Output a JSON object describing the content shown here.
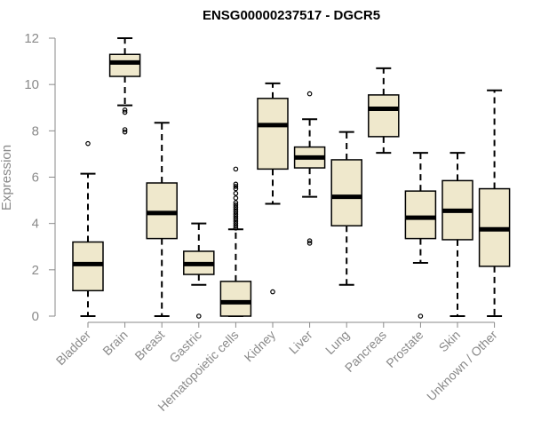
{
  "chart_data": {
    "type": "boxplot",
    "title": "ENSG00000237517 - DGCR5",
    "xlabel": "",
    "ylabel": "Expression",
    "ylim": [
      0,
      12
    ],
    "yticks": [
      0,
      2,
      4,
      6,
      8,
      10,
      12
    ],
    "grid": false,
    "legend": "none",
    "box_fill": "#efe8cc",
    "categories": [
      "Bladder",
      "Brain",
      "Breast",
      "Gastric",
      "Hematopoietic cells",
      "Kidney",
      "Liver",
      "Lung",
      "Pancreas",
      "Prostate",
      "Skin",
      "Unknown / Other"
    ],
    "boxes": [
      {
        "min": 0.0,
        "q1": 1.1,
        "median": 2.25,
        "q3": 3.2,
        "max": 6.15,
        "outliers": [
          7.45
        ]
      },
      {
        "min": 9.1,
        "q1": 10.35,
        "median": 10.95,
        "q3": 11.3,
        "max": 12.0,
        "outliers": [
          8.8,
          8.9,
          8.05,
          7.95
        ]
      },
      {
        "min": 0.0,
        "q1": 3.35,
        "median": 4.45,
        "q3": 5.75,
        "max": 8.35,
        "outliers": []
      },
      {
        "min": 1.35,
        "q1": 1.8,
        "median": 2.25,
        "q3": 2.8,
        "max": 4.0,
        "outliers": [
          0.0
        ]
      },
      {
        "min": 0.0,
        "q1": 0.0,
        "median": 0.6,
        "q3": 1.5,
        "max": 3.75,
        "outliers": [
          3.8,
          3.9,
          4.0,
          4.1,
          4.2,
          4.3,
          4.4,
          4.5,
          4.6,
          4.7,
          4.8,
          4.9,
          5.1,
          5.3,
          5.5,
          5.6,
          5.7,
          6.35
        ]
      },
      {
        "min": 4.85,
        "q1": 6.35,
        "median": 8.25,
        "q3": 9.4,
        "max": 10.05,
        "outliers": [
          1.05
        ]
      },
      {
        "min": 5.15,
        "q1": 6.4,
        "median": 6.85,
        "q3": 7.3,
        "max": 8.5,
        "outliers": [
          9.6,
          3.25,
          3.15
        ]
      },
      {
        "min": 1.35,
        "q1": 3.9,
        "median": 5.15,
        "q3": 6.75,
        "max": 7.95,
        "outliers": []
      },
      {
        "min": 7.05,
        "q1": 7.75,
        "median": 8.95,
        "q3": 9.55,
        "max": 10.7,
        "outliers": []
      },
      {
        "min": 2.3,
        "q1": 3.35,
        "median": 4.25,
        "q3": 5.4,
        "max": 7.05,
        "outliers": [
          0.0
        ]
      },
      {
        "min": 0.0,
        "q1": 3.3,
        "median": 4.55,
        "q3": 5.85,
        "max": 7.05,
        "outliers": []
      },
      {
        "min": 0.0,
        "q1": 2.15,
        "median": 3.75,
        "q3": 5.5,
        "max": 9.75,
        "outliers": []
      }
    ]
  }
}
